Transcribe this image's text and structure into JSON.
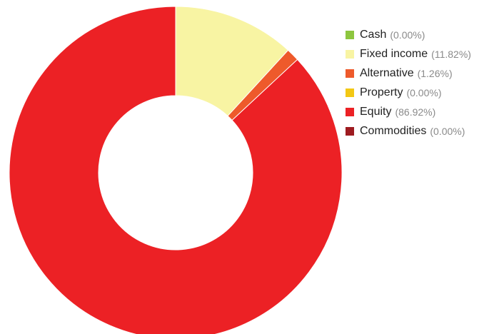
{
  "chart_data": {
    "type": "pie",
    "donut": true,
    "title": "",
    "legend_position": "right",
    "series": [
      {
        "name": "Cash",
        "value": 0.0,
        "label": "(0.00%)",
        "color": "#8dc63f"
      },
      {
        "name": "Fixed income",
        "value": 11.82,
        "label": "(11.82%)",
        "color": "#f8f4a3"
      },
      {
        "name": "Alternative",
        "value": 1.26,
        "label": "(1.26%)",
        "color": "#ee5a2b"
      },
      {
        "name": "Property",
        "value": 0.0,
        "label": "(0.00%)",
        "color": "#f3c814"
      },
      {
        "name": "Equity",
        "value": 86.92,
        "label": "(86.92%)",
        "color": "#ec2125"
      },
      {
        "name": "Commodities",
        "value": 0.0,
        "label": "(0.00%)",
        "color": "#9e1b20"
      }
    ]
  }
}
